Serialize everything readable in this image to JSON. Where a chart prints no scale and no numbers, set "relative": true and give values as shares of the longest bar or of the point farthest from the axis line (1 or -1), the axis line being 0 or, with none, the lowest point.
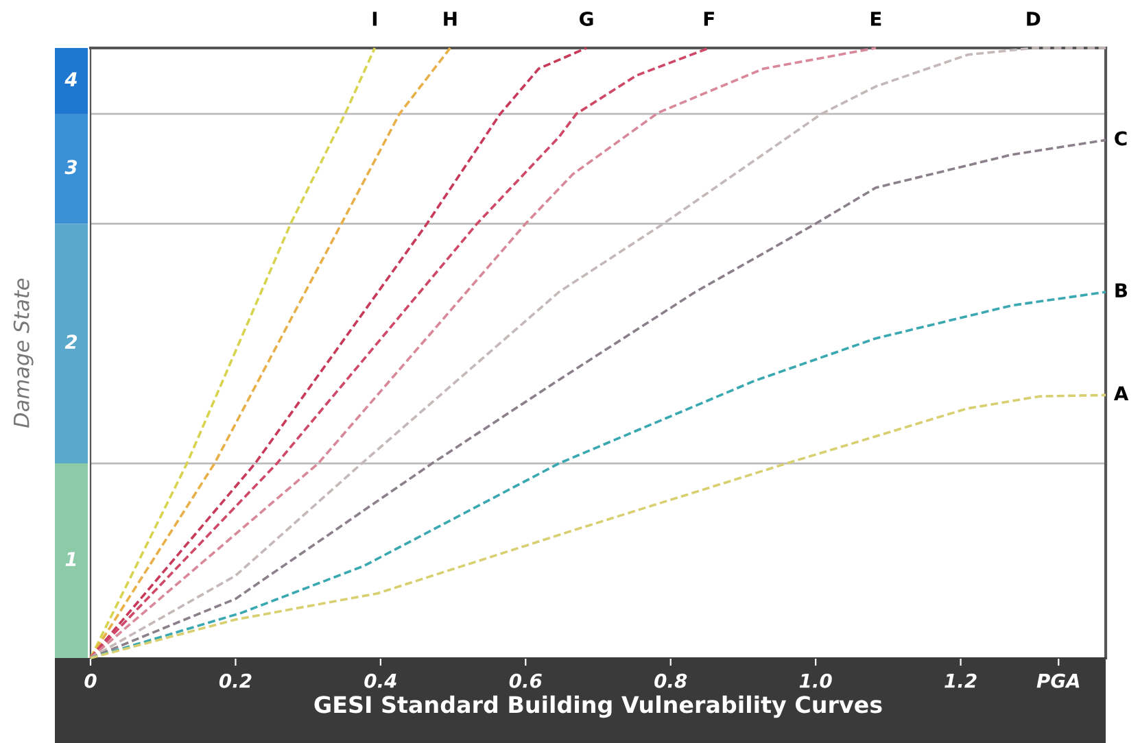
{
  "chart_data": {
    "type": "line",
    "relative": true,
    "ylabel": "Damage State",
    "xlabel": "GESI Standard Building Vulnerability Curves",
    "xlim": [
      0,
      1.4
    ],
    "annotations": [
      "1",
      "2",
      "3",
      "4"
    ],
    "xticks": [
      0,
      0.2,
      0.4,
      0.6,
      0.8,
      {
        "value": 1,
        "label": "1.0"
      },
      1.2,
      {
        "value": 1.335,
        "label": "PGA"
      }
    ],
    "line_style": "dashed",
    "marker": "none",
    "grid": false,
    "legend": false,
    "series": [
      {
        "name": "I",
        "color": "#d8d450",
        "x": [
          0,
          0.133,
          0.276,
          0.351,
          0.392
        ],
        "values": [
          0,
          0.319,
          0.712,
          0.892,
          1.0
        ]
      },
      {
        "name": "H",
        "color": "#e8b048",
        "x": [
          0,
          0.171,
          0.346,
          0.426,
          0.496
        ],
        "values": [
          0,
          0.319,
          0.712,
          0.892,
          1.0
        ]
      },
      {
        "name": "G",
        "color": "#c83a5a",
        "x": [
          0,
          0.227,
          0.464,
          0.565,
          0.618,
          0.684
        ],
        "values": [
          0,
          0.319,
          0.712,
          0.892,
          0.966,
          1.0
        ]
      },
      {
        "name": "F",
        "color": "#d04868",
        "x": [
          0,
          0.257,
          0.533,
          0.646,
          0.67,
          0.753,
          0.853
        ],
        "values": [
          0,
          0.319,
          0.712,
          0.854,
          0.892,
          0.955,
          1.0
        ]
      },
      {
        "name": "E",
        "color": "#d88898",
        "x": [
          0,
          0.314,
          0.6,
          0.665,
          0.783,
          0.928,
          1.083
        ],
        "values": [
          0,
          0.319,
          0.712,
          0.793,
          0.894,
          0.966,
          1.0
        ]
      },
      {
        "name": "D",
        "color": "#c4b8b8",
        "x": [
          0,
          0.2,
          0.374,
          0.646,
          0.79,
          1.008,
          1.083,
          1.21,
          1.3,
          1.4
        ],
        "values": [
          0,
          0.135,
          0.319,
          0.6,
          0.712,
          0.892,
          0.937,
          0.989,
          1.0,
          1.0
        ]
      },
      {
        "name": "C",
        "color": "#8c7f8c",
        "x": [
          0,
          0.2,
          0.471,
          0.646,
          0.834,
          1.0,
          1.083,
          1.27,
          1.4
        ],
        "values": [
          0,
          0.097,
          0.319,
          0.456,
          0.6,
          0.712,
          0.771,
          0.825,
          0.849
        ]
      },
      {
        "name": "B",
        "color": "#3aa8b0",
        "x": [
          0,
          0.208,
          0.377,
          0.646,
          0.915,
          1.083,
          1.271,
          1.4
        ],
        "values": [
          0,
          0.074,
          0.151,
          0.319,
          0.454,
          0.524,
          0.578,
          0.6
        ]
      },
      {
        "name": "A",
        "color": "#d8d070",
        "x": [
          0,
          0.2,
          0.396,
          0.665,
          0.96,
          1.209,
          1.309,
          1.4
        ],
        "values": [
          0,
          0.063,
          0.106,
          0.209,
          0.319,
          0.409,
          0.429,
          0.431
        ]
      }
    ],
    "ref_lines": [
      {
        "axis": "y",
        "value": 0.319,
        "color": "#bbbbbb"
      },
      {
        "axis": "y",
        "value": 0.712,
        "color": "#bbbbbb"
      },
      {
        "axis": "y",
        "value": 0.892,
        "color": "#bbbbbb"
      }
    ]
  }
}
